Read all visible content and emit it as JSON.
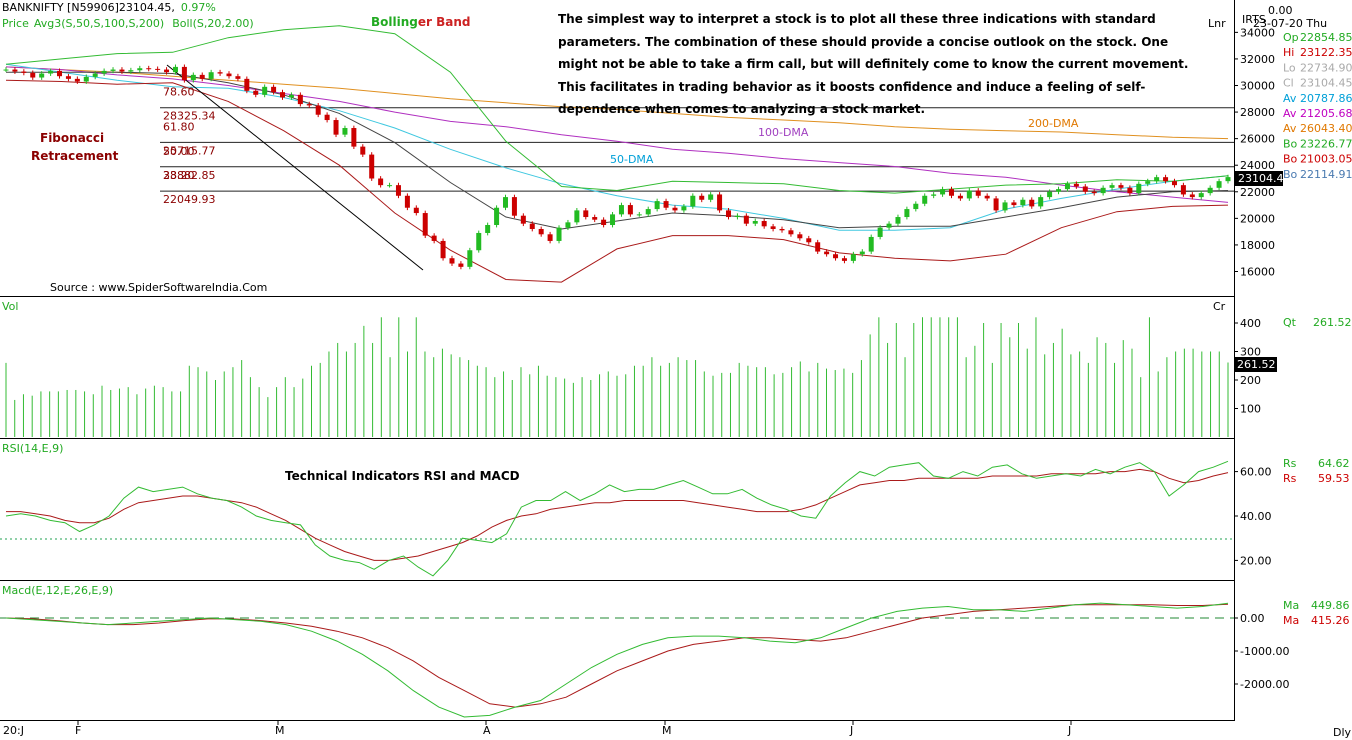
{
  "header": {
    "symbol": "BANKNIFTY [N59906]",
    "price": "23104.45,",
    "change": "0.97%",
    "legend_price": "Price",
    "legend_avg": "Avg3(S,50,S,100,S,200)",
    "legend_boll": "Boll(S,20,2.00)",
    "scale_mode": "Lnr",
    "irts": "IRTS",
    "top_value": "0.00",
    "date": "23-07-20 Thu"
  },
  "annotations": {
    "bollinger_a": "Bolling",
    "bollinger_b": "er Band",
    "description": "The simplest way to interpret a stock is to plot all these three indications with standard parameters. The combination of these should provide a concise outlook on the stock. One might not be able to take a firm call, but will definitely come to know the current movement. This facilitates in trading behavior as it boosts confidence and induce a feeling of self-dependence when comes to analyzing a stock market.",
    "fib_line1": "Fibonacci",
    "fib_line2": "Retracement",
    "source": "Source : www.SpiderSoftwareIndia.Com",
    "dma100": "100-DMA",
    "dma200": "200-DMA",
    "dma50": "50-DMA",
    "tech": "Technical Indicators RSI and MACD"
  },
  "fib_labels": [
    {
      "pct": "78.60",
      "val": "28325.34"
    },
    {
      "pct": "61.80",
      "val": "25715.77"
    },
    {
      "pct": "50.00",
      "val": "23882.85"
    },
    {
      "pct": "38.20",
      "val": "22049.93"
    }
  ],
  "ohlc_panel": [
    {
      "label": "Op",
      "value": "22854.85",
      "color": "#22aa22"
    },
    {
      "label": "Hi",
      "value": "23122.35",
      "color": "#cc0000"
    },
    {
      "label": "Lo",
      "value": "22734.90",
      "color": "#aaaaaa"
    },
    {
      "label": "Cl",
      "value": "23104.45",
      "color": "#aaaaaa"
    },
    {
      "label": "Av",
      "value": "20787.86",
      "color": "#00a0d8"
    },
    {
      "label": "Av",
      "value": "21205.68",
      "color": "#c000c0"
    },
    {
      "label": "Av",
      "value": "26043.40",
      "color": "#e07800"
    },
    {
      "label": "Bo",
      "value": "23226.77",
      "color": "#22aa22"
    },
    {
      "label": "Bo",
      "value": "21003.05",
      "color": "#cc0000"
    },
    {
      "label": "Bo",
      "value": "22114.91",
      "color": "#4a7ab0"
    }
  ],
  "last_price_tag": "23104.4",
  "vol_panel": {
    "title": "Vol",
    "unit": "Cr",
    "qt_label": "Qt",
    "qt_value": "261.52",
    "tag": "261.52"
  },
  "rsi_panel": {
    "title": "RSI(14,E,9)",
    "rs1_label": "Rs",
    "rs1_value": "64.62",
    "rs2_label": "Rs",
    "rs2_value": "59.53"
  },
  "macd_panel": {
    "title": "Macd(E,12,E,26,E,9)",
    "ma1_label": "Ma",
    "ma1_value": "449.86",
    "ma2_label": "Ma",
    "ma2_value": "415.26"
  },
  "footer": {
    "start": "20:J",
    "period": "Dly"
  },
  "chart_data": [
    {
      "type": "candlestick",
      "title": "BANKNIFTY [N59906] daily",
      "y_ticks": [
        34000,
        32000,
        30000,
        28000,
        26000,
        24000,
        22000,
        20000,
        18000,
        16000
      ],
      "ylim": [
        14500,
        35500
      ],
      "x_ticks": [
        "F",
        "M",
        "A",
        "M",
        "J",
        "J"
      ],
      "fib_levels": [
        28325.34,
        25715.77,
        23882.85,
        22049.93
      ],
      "closes": [
        31200,
        31050,
        30950,
        30600,
        30900,
        31100,
        30700,
        30500,
        30300,
        30650,
        30900,
        31100,
        31200,
        31050,
        31150,
        31300,
        31250,
        31200,
        31000,
        31400,
        30400,
        30800,
        30500,
        31000,
        30900,
        30700,
        30500,
        29600,
        29300,
        29900,
        29500,
        29100,
        29300,
        28600,
        28500,
        27800,
        27400,
        26300,
        26800,
        25400,
        24800,
        23000,
        22500,
        22500,
        21700,
        20800,
        20400,
        18700,
        18300,
        17000,
        16600,
        16350,
        17600,
        18900,
        19500,
        20800,
        21600,
        20200,
        19600,
        19200,
        18800,
        18300,
        19300,
        19700,
        20600,
        20100,
        19900,
        19500,
        20300,
        21000,
        20300,
        20300,
        20700,
        21300,
        20800,
        20600,
        20900,
        21700,
        21400,
        21800,
        20600,
        20100,
        20200,
        19600,
        19800,
        19400,
        19200,
        19100,
        18800,
        18500,
        18200,
        17500,
        17300,
        17000,
        16800,
        17300,
        17500,
        18600,
        19300,
        19600,
        20100,
        20700,
        21100,
        21700,
        21800,
        22200,
        21700,
        21500,
        22100,
        21700,
        21500,
        20600,
        21200,
        21000,
        21400,
        20900,
        21600,
        22000,
        22200,
        22600,
        22400,
        22000,
        21900,
        22300,
        22500,
        22300,
        21900,
        22600,
        22800,
        23100,
        22800,
        22500,
        21800,
        21600,
        21900,
        22300,
        22800,
        23104.45
      ],
      "sma50": [
        31600,
        31000,
        30400,
        29900,
        29800,
        29100,
        28100,
        26800,
        25200,
        23800,
        22600,
        21700,
        21000,
        20700,
        20000,
        19100,
        19100,
        19300,
        20700,
        21500,
        22200,
        22800,
        23200
      ],
      "sma100": [
        31400,
        31200,
        30800,
        30500,
        30000,
        29400,
        28800,
        28000,
        27300,
        26900,
        26300,
        25800,
        25200,
        24900,
        24500,
        24200,
        23900,
        23400,
        23100,
        22500,
        22000,
        21600,
        21200
      ],
      "sma200": [
        31400,
        31200,
        31000,
        30700,
        30400,
        30100,
        29800,
        29400,
        29000,
        28700,
        28400,
        28200,
        27900,
        27600,
        27400,
        27200,
        26900,
        26700,
        26600,
        26500,
        26300,
        26100,
        26000
      ],
      "boll_upper": [
        31600,
        32000,
        32400,
        32500,
        33600,
        34200,
        34500,
        33900,
        31000,
        25800,
        22400,
        22100,
        22800,
        22700,
        22600,
        22100,
        21900,
        22200,
        22500,
        22600,
        22900,
        22800,
        23200
      ],
      "boll_lower": [
        30400,
        30300,
        30100,
        30200,
        28800,
        26600,
        24000,
        20400,
        17600,
        15400,
        15200,
        17700,
        18700,
        18700,
        18400,
        17400,
        17000,
        16800,
        17300,
        19300,
        20500,
        20900,
        21000
      ],
      "boll_mid": [
        31000,
        31000,
        31000,
        30900,
        30200,
        29300,
        27900,
        25700,
        22700,
        20100,
        19200,
        19800,
        20400,
        20200,
        19900,
        19300,
        19400,
        19400,
        20100,
        20800,
        21600,
        22000,
        22100
      ]
    },
    {
      "type": "bar",
      "title": "Vol",
      "unit": "Cr",
      "y_ticks": [
        400,
        300,
        200,
        100
      ],
      "ylim": [
        0,
        450
      ],
      "values": [
        260,
        130,
        150,
        145,
        160,
        160,
        160,
        165,
        165,
        160,
        150,
        180,
        165,
        170,
        175,
        150,
        170,
        180,
        175,
        160,
        160,
        250,
        245,
        230,
        200,
        230,
        245,
        270,
        210,
        175,
        140,
        175,
        210,
        175,
        205,
        250,
        260,
        300,
        330,
        300,
        330,
        390,
        330,
        420,
        280,
        420,
        300,
        420,
        300,
        280,
        310,
        290,
        280,
        270,
        250,
        245,
        210,
        230,
        200,
        245,
        220,
        250,
        215,
        210,
        205,
        190,
        210,
        200,
        220,
        230,
        215,
        220,
        250,
        250,
        280,
        250,
        260,
        280,
        270,
        270,
        230,
        215,
        225,
        225,
        260,
        250,
        245,
        245,
        220,
        225,
        245,
        265,
        230,
        260,
        240,
        235,
        240,
        225,
        270,
        360,
        420,
        330,
        400,
        280,
        400,
        420,
        420,
        420,
        420,
        420,
        280,
        320,
        400,
        260,
        400,
        350,
        400,
        310,
        420,
        290,
        330,
        380,
        290,
        300,
        260,
        350,
        330,
        260,
        340,
        310,
        210,
        420,
        230,
        280,
        300,
        310,
        310,
        300,
        300,
        300,
        261.52
      ]
    },
    {
      "type": "line",
      "title": "RSI(14,E,9)",
      "y_ticks": [
        60,
        40,
        20
      ],
      "ylim": [
        10,
        75
      ],
      "reference_line": 30,
      "series": [
        {
          "name": "RSI",
          "values": [
            40,
            41,
            40,
            38,
            37,
            33,
            36,
            40,
            48,
            53,
            51,
            52,
            53,
            50,
            48,
            47,
            44,
            40,
            38,
            37,
            36,
            27,
            22,
            20,
            19,
            16,
            20,
            22,
            17,
            13,
            20,
            30,
            29,
            28,
            32,
            44,
            47,
            47,
            51,
            47,
            50,
            54,
            51,
            52,
            52,
            54,
            56,
            53,
            50,
            50,
            52,
            48,
            45,
            43,
            40,
            39,
            49,
            55,
            60,
            58,
            62,
            63,
            64,
            58,
            57,
            60,
            58,
            62,
            63,
            59,
            57,
            58,
            59,
            58,
            61,
            59,
            62,
            64,
            60,
            49,
            54,
            60,
            62,
            64.62
          ]
        },
        {
          "name": "Signal",
          "values": [
            42,
            42,
            41,
            40,
            38,
            37,
            37,
            39,
            43,
            46,
            47,
            48,
            49,
            49,
            48,
            47,
            46,
            44,
            41,
            38,
            34,
            30,
            27,
            24,
            22,
            20,
            20,
            21,
            22,
            24,
            26,
            28,
            31,
            35,
            38,
            40,
            41,
            43,
            44,
            45,
            46,
            46,
            47,
            47,
            47,
            47,
            47,
            46,
            45,
            44,
            43,
            42,
            42,
            42,
            43,
            45,
            48,
            51,
            54,
            55,
            56,
            56,
            57,
            57,
            57,
            57,
            57,
            58,
            58,
            58,
            58,
            59,
            59,
            59,
            59,
            60,
            60,
            61,
            60,
            57,
            55,
            56,
            58,
            59.53
          ]
        }
      ]
    },
    {
      "type": "line",
      "title": "Macd(E,12,E,26,E,9)",
      "y_ticks": [
        0,
        -1000,
        -2000
      ],
      "ylim": [
        -3200,
        700
      ],
      "series": [
        {
          "name": "MACD",
          "values": [
            0,
            -50,
            -100,
            -150,
            -200,
            -150,
            -100,
            -50,
            0,
            -50,
            -100,
            -200,
            -400,
            -700,
            -1100,
            -1600,
            -2200,
            -2700,
            -3000,
            -2950,
            -2700,
            -2500,
            -2000,
            -1500,
            -1100,
            -800,
            -600,
            -550,
            -550,
            -600,
            -700,
            -750,
            -600,
            -300,
            0,
            200,
            300,
            350,
            250,
            250,
            200,
            300,
            400,
            450,
            400,
            350,
            300,
            350,
            449.86
          ]
        },
        {
          "name": "Signal",
          "values": [
            0,
            -20,
            -80,
            -150,
            -200,
            -200,
            -150,
            -80,
            -20,
            -30,
            -80,
            -150,
            -250,
            -400,
            -600,
            -900,
            -1300,
            -1800,
            -2200,
            -2600,
            -2700,
            -2600,
            -2400,
            -2000,
            -1600,
            -1300,
            -1000,
            -800,
            -700,
            -600,
            -600,
            -650,
            -700,
            -600,
            -400,
            -200,
            0,
            100,
            200,
            250,
            300,
            350,
            400,
            400,
            400,
            400,
            380,
            380,
            415.26
          ]
        }
      ]
    }
  ]
}
